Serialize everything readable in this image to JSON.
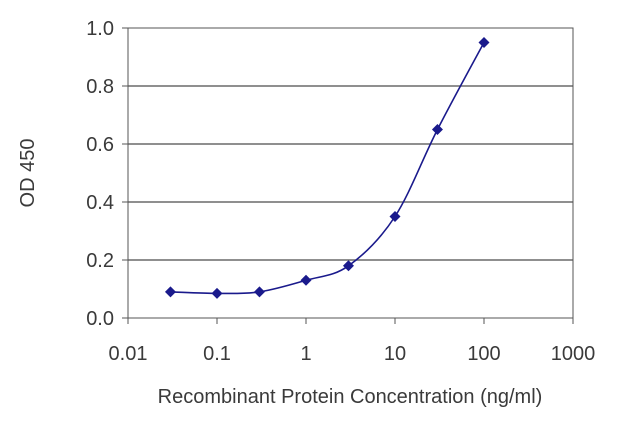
{
  "chart_data": {
    "type": "line",
    "xlabel": "Recombinant Protein Concentration (ng/ml)",
    "ylabel": "OD 450",
    "xscale": "log",
    "xlim": [
      0.01,
      1000
    ],
    "ylim": [
      0.0,
      1.0
    ],
    "xticks": [
      "0.01",
      "0.1",
      "1",
      "10",
      "100",
      "1000"
    ],
    "yticks": [
      "0.0",
      "0.2",
      "0.4",
      "0.6",
      "0.8",
      "1.0"
    ],
    "grid": "horizontal",
    "series": [
      {
        "color": "#1a1a8c",
        "x": [
          0.03,
          0.1,
          0.3,
          1,
          3,
          10,
          30,
          100
        ],
        "y": [
          0.09,
          0.085,
          0.09,
          0.13,
          0.18,
          0.35,
          0.65,
          0.95
        ]
      }
    ]
  }
}
